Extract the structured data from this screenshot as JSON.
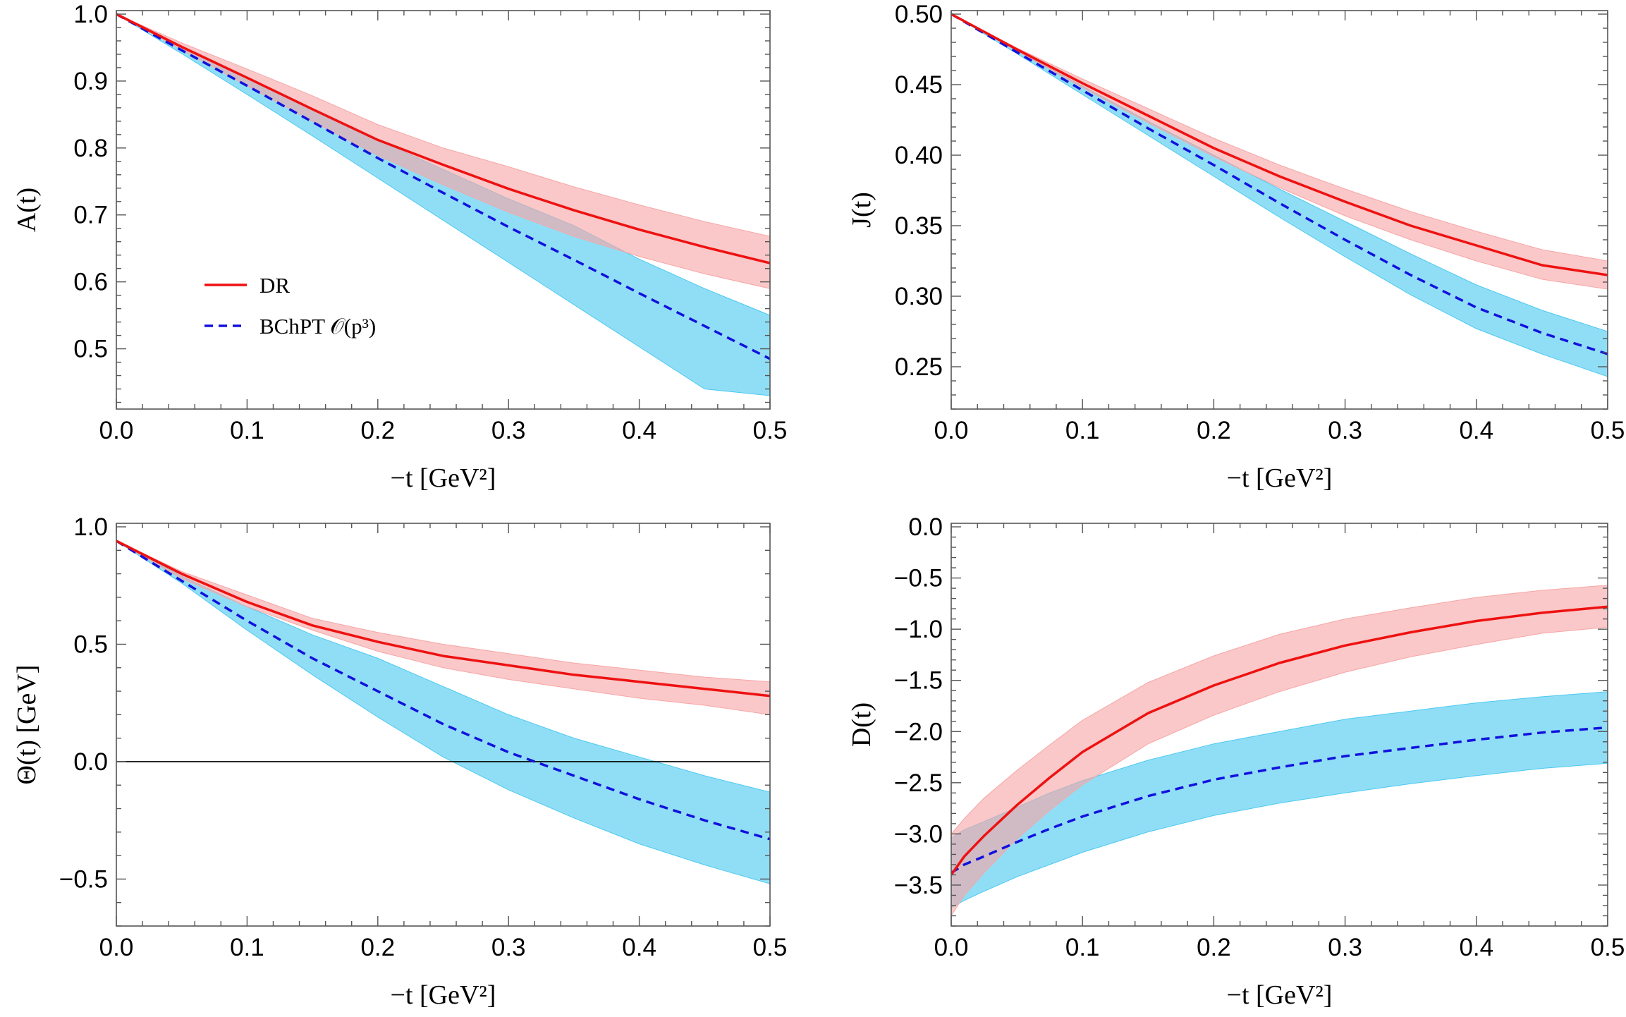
{
  "colors": {
    "dr_line": "#ee1111",
    "dr_band": "#f7a6a6",
    "bchpt_line": "#1111dd",
    "bchpt_band": "#4cc9f0",
    "frame": "#555555"
  },
  "legend": {
    "dr": "DR",
    "bchpt": "BChPT 𝒪(p³)",
    "placement": "inside panel A, middle-left"
  },
  "chart_data": [
    {
      "type": "line",
      "id": "A",
      "ylabel": "A(t)",
      "xlabel": "−t [GeV²]",
      "xlim": [
        0,
        0.5
      ],
      "ylim": [
        0.41,
        1.0
      ],
      "xticks": [
        "0.0",
        "0.1",
        "0.2",
        "0.3",
        "0.4",
        "0.5"
      ],
      "yticks": [
        "0.5",
        "0.6",
        "0.7",
        "0.8",
        "0.9",
        "1.0"
      ],
      "zero_line": false,
      "x": [
        0,
        0.05,
        0.1,
        0.15,
        0.2,
        0.25,
        0.3,
        0.35,
        0.4,
        0.45,
        0.5
      ],
      "series": [
        {
          "name": "DR",
          "style": "solid",
          "values": [
            1.0,
            0.951,
            0.905,
            0.858,
            0.812,
            0.775,
            0.739,
            0.707,
            0.678,
            0.652,
            0.628
          ],
          "lower": [
            1.0,
            0.947,
            0.893,
            0.84,
            0.789,
            0.745,
            0.704,
            0.668,
            0.638,
            0.612,
            0.59
          ],
          "upper": [
            1.0,
            0.957,
            0.918,
            0.878,
            0.835,
            0.8,
            0.772,
            0.742,
            0.715,
            0.69,
            0.668
          ]
        },
        {
          "name": "BChPT 𝒪(p³)",
          "style": "dashed",
          "values": [
            1.0,
            0.946,
            0.893,
            0.839,
            0.785,
            0.733,
            0.682,
            0.633,
            0.583,
            0.534,
            0.485
          ],
          "lower": [
            1.0,
            0.941,
            0.88,
            0.818,
            0.755,
            0.692,
            0.629,
            0.566,
            0.503,
            0.44,
            0.43
          ],
          "upper": [
            1.0,
            0.951,
            0.905,
            0.858,
            0.812,
            0.768,
            0.724,
            0.684,
            0.634,
            0.59,
            0.55
          ]
        }
      ]
    },
    {
      "type": "line",
      "id": "J",
      "ylabel": "J(t)",
      "xlabel": "−t [GeV²]",
      "xlim": [
        0,
        0.5
      ],
      "ylim": [
        0.22,
        0.5
      ],
      "xticks": [
        "0.0",
        "0.1",
        "0.2",
        "0.3",
        "0.4",
        "0.5"
      ],
      "yticks": [
        "0.25",
        "0.30",
        "0.35",
        "0.40",
        "0.45",
        "0.50"
      ],
      "zero_line": false,
      "x": [
        0,
        0.05,
        0.1,
        0.15,
        0.2,
        0.25,
        0.3,
        0.35,
        0.4,
        0.45,
        0.5
      ],
      "series": [
        {
          "name": "DR",
          "style": "solid",
          "values": [
            0.5,
            0.475,
            0.451,
            0.428,
            0.405,
            0.385,
            0.367,
            0.35,
            0.336,
            0.322,
            0.315
          ],
          "lower": [
            0.5,
            0.474,
            0.448,
            0.423,
            0.399,
            0.377,
            0.357,
            0.34,
            0.325,
            0.312,
            0.305
          ],
          "upper": [
            0.5,
            0.476,
            0.454,
            0.433,
            0.412,
            0.393,
            0.376,
            0.36,
            0.346,
            0.333,
            0.325
          ]
        },
        {
          "name": "BChPT 𝒪(p³)",
          "style": "dashed",
          "values": [
            0.5,
            0.473,
            0.446,
            0.419,
            0.393,
            0.366,
            0.34,
            0.315,
            0.292,
            0.274,
            0.259
          ],
          "lower": [
            0.5,
            0.472,
            0.443,
            0.414,
            0.385,
            0.356,
            0.328,
            0.301,
            0.277,
            0.259,
            0.243
          ],
          "upper": [
            0.5,
            0.474,
            0.449,
            0.424,
            0.4,
            0.376,
            0.353,
            0.33,
            0.308,
            0.29,
            0.275
          ]
        }
      ]
    },
    {
      "type": "line",
      "id": "Theta",
      "ylabel": "Θ(t) [GeV]",
      "xlabel": "−t [GeV²]",
      "xlim": [
        0,
        0.5
      ],
      "ylim": [
        -0.7,
        1.0
      ],
      "xticks": [
        "0.0",
        "0.1",
        "0.2",
        "0.3",
        "0.4",
        "0.5"
      ],
      "yticks": [
        "−0.5",
        "0.0",
        "0.5",
        "1.0"
      ],
      "zero_line": true,
      "x": [
        0,
        0.05,
        0.1,
        0.15,
        0.2,
        0.25,
        0.3,
        0.35,
        0.4,
        0.45,
        0.5
      ],
      "series": [
        {
          "name": "DR",
          "style": "solid",
          "values": [
            0.94,
            0.8,
            0.68,
            0.58,
            0.51,
            0.45,
            0.41,
            0.37,
            0.34,
            0.31,
            0.28
          ],
          "lower": [
            0.94,
            0.78,
            0.66,
            0.56,
            0.47,
            0.4,
            0.35,
            0.31,
            0.27,
            0.24,
            0.2
          ],
          "upper": [
            0.94,
            0.81,
            0.71,
            0.61,
            0.55,
            0.5,
            0.46,
            0.42,
            0.39,
            0.36,
            0.34
          ]
        },
        {
          "name": "BChPT 𝒪(p³)",
          "style": "dashed",
          "values": [
            0.94,
            0.77,
            0.6,
            0.44,
            0.3,
            0.16,
            0.04,
            -0.06,
            -0.16,
            -0.25,
            -0.33
          ],
          "lower": [
            0.94,
            0.76,
            0.56,
            0.37,
            0.19,
            0.02,
            -0.12,
            -0.24,
            -0.35,
            -0.44,
            -0.52
          ],
          "upper": [
            0.94,
            0.79,
            0.66,
            0.54,
            0.44,
            0.32,
            0.2,
            0.1,
            0.02,
            -0.06,
            -0.13
          ]
        }
      ]
    },
    {
      "type": "line",
      "id": "D",
      "ylabel": "D(t)",
      "xlabel": "−t [GeV²]",
      "xlim": [
        0,
        0.5
      ],
      "ylim": [
        -3.9,
        0.0
      ],
      "xticks": [
        "0.0",
        "0.1",
        "0.2",
        "0.3",
        "0.4",
        "0.5"
      ],
      "yticks": [
        "−3.5",
        "−3.0",
        "−2.5",
        "−2.0",
        "−1.5",
        "−1.0",
        "−0.5",
        "0.0"
      ],
      "zero_line": false,
      "x": [
        0,
        0.01,
        0.025,
        0.05,
        0.075,
        0.1,
        0.15,
        0.2,
        0.25,
        0.3,
        0.35,
        0.4,
        0.45,
        0.5
      ],
      "series": [
        {
          "name": "DR",
          "style": "solid",
          "values": [
            -3.4,
            -3.22,
            -3.02,
            -2.72,
            -2.45,
            -2.2,
            -1.82,
            -1.55,
            -1.33,
            -1.16,
            -1.03,
            -0.92,
            -0.84,
            -0.78
          ],
          "lower": [
            -3.8,
            -3.6,
            -3.38,
            -3.05,
            -2.77,
            -2.52,
            -2.12,
            -1.84,
            -1.61,
            -1.42,
            -1.27,
            -1.15,
            -1.04,
            -0.98
          ],
          "upper": [
            -3.0,
            -2.85,
            -2.65,
            -2.38,
            -2.13,
            -1.89,
            -1.52,
            -1.26,
            -1.05,
            -0.9,
            -0.79,
            -0.69,
            -0.62,
            -0.57
          ]
        },
        {
          "name": "BChPT 𝒪(p³)",
          "style": "dashed",
          "values": [
            -3.38,
            -3.3,
            -3.22,
            -3.08,
            -2.95,
            -2.83,
            -2.63,
            -2.47,
            -2.35,
            -2.24,
            -2.16,
            -2.08,
            -2.01,
            -1.96
          ],
          "lower": [
            -3.72,
            -3.65,
            -3.56,
            -3.42,
            -3.3,
            -3.18,
            -2.98,
            -2.82,
            -2.7,
            -2.6,
            -2.51,
            -2.43,
            -2.36,
            -2.31
          ],
          "upper": [
            -3.04,
            -2.96,
            -2.88,
            -2.74,
            -2.6,
            -2.48,
            -2.28,
            -2.12,
            -2.0,
            -1.88,
            -1.8,
            -1.72,
            -1.66,
            -1.61
          ]
        }
      ]
    }
  ]
}
